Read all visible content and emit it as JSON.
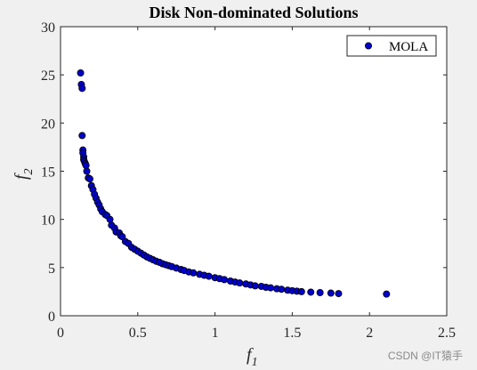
{
  "chart_data": {
    "type": "scatter",
    "title": "Disk Non-dominated Solutions",
    "xlabel": {
      "main": "f",
      "sub": "1"
    },
    "ylabel": {
      "main": "f",
      "sub": "2"
    },
    "xlim": [
      0,
      2.5
    ],
    "ylim": [
      0,
      30
    ],
    "xticks": [
      "0",
      "0.5",
      "1",
      "1.5",
      "2",
      "2.5"
    ],
    "yticks": [
      "0",
      "5",
      "10",
      "15",
      "20",
      "25",
      "30"
    ],
    "grid": false,
    "legend_position": "top-right",
    "series": [
      {
        "name": "MOLA",
        "marker_color": "#0000cc",
        "edge_color": "#000000",
        "points": [
          [
            0.13,
            25.2
          ],
          [
            0.135,
            24.0
          ],
          [
            0.14,
            23.6
          ],
          [
            0.14,
            18.7
          ],
          [
            0.145,
            17.2
          ],
          [
            0.145,
            16.9
          ],
          [
            0.15,
            16.5
          ],
          [
            0.15,
            16.2
          ],
          [
            0.155,
            16.0
          ],
          [
            0.16,
            15.8
          ],
          [
            0.165,
            15.6
          ],
          [
            0.17,
            15.0
          ],
          [
            0.18,
            14.3
          ],
          [
            0.19,
            14.2
          ],
          [
            0.2,
            13.5
          ],
          [
            0.21,
            13.1
          ],
          [
            0.22,
            12.6
          ],
          [
            0.23,
            12.2
          ],
          [
            0.24,
            11.8
          ],
          [
            0.25,
            11.5
          ],
          [
            0.26,
            11.1
          ],
          [
            0.27,
            10.8
          ],
          [
            0.29,
            10.5
          ],
          [
            0.3,
            10.4
          ],
          [
            0.32,
            10.0
          ],
          [
            0.33,
            9.4
          ],
          [
            0.35,
            9.1
          ],
          [
            0.36,
            8.7
          ],
          [
            0.38,
            8.6
          ],
          [
            0.39,
            8.3
          ],
          [
            0.4,
            8.2
          ],
          [
            0.42,
            7.7
          ],
          [
            0.44,
            7.5
          ],
          [
            0.46,
            7.1
          ],
          [
            0.48,
            6.9
          ],
          [
            0.5,
            6.7
          ],
          [
            0.52,
            6.5
          ],
          [
            0.54,
            6.3
          ],
          [
            0.56,
            6.1
          ],
          [
            0.58,
            5.95
          ],
          [
            0.6,
            5.8
          ],
          [
            0.62,
            5.65
          ],
          [
            0.64,
            5.55
          ],
          [
            0.66,
            5.4
          ],
          [
            0.68,
            5.3
          ],
          [
            0.7,
            5.2
          ],
          [
            0.72,
            5.1
          ],
          [
            0.75,
            4.95
          ],
          [
            0.78,
            4.8
          ],
          [
            0.8,
            4.7
          ],
          [
            0.83,
            4.55
          ],
          [
            0.86,
            4.45
          ],
          [
            0.9,
            4.3
          ],
          [
            0.93,
            4.2
          ],
          [
            0.96,
            4.1
          ],
          [
            1.0,
            3.95
          ],
          [
            1.03,
            3.85
          ],
          [
            1.06,
            3.75
          ],
          [
            1.1,
            3.6
          ],
          [
            1.13,
            3.5
          ],
          [
            1.16,
            3.4
          ],
          [
            1.2,
            3.3
          ],
          [
            1.23,
            3.2
          ],
          [
            1.26,
            3.1
          ],
          [
            1.3,
            3.05
          ],
          [
            1.33,
            2.95
          ],
          [
            1.36,
            2.9
          ],
          [
            1.4,
            2.8
          ],
          [
            1.43,
            2.75
          ],
          [
            1.47,
            2.65
          ],
          [
            1.5,
            2.6
          ],
          [
            1.53,
            2.55
          ],
          [
            1.56,
            2.5
          ],
          [
            1.62,
            2.45
          ],
          [
            1.68,
            2.4
          ],
          [
            1.75,
            2.35
          ],
          [
            1.8,
            2.3
          ],
          [
            2.11,
            2.25
          ]
        ]
      }
    ]
  },
  "watermark": "CSDN @IT猿手"
}
